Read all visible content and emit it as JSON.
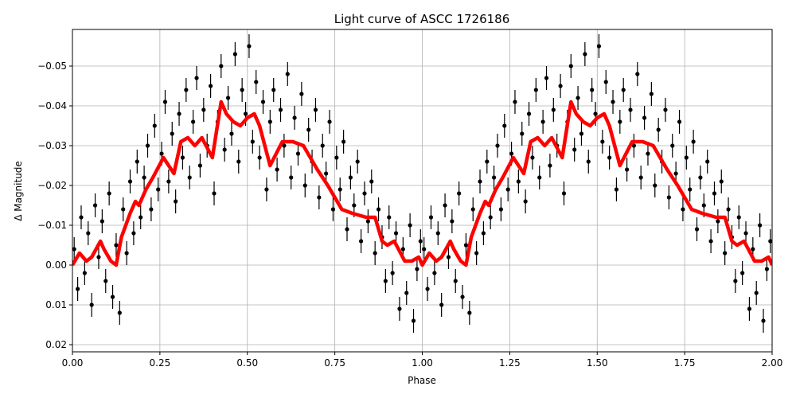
{
  "chart_data": {
    "type": "scatter",
    "title": "Light curve of ASCC 1726186",
    "xlabel": "Phase",
    "ylabel": "Δ Magnitude",
    "xlim": [
      0,
      2
    ],
    "ylim": [
      0.0218,
      -0.0592
    ],
    "y_inverted": true,
    "grid": true,
    "xticks": [
      "0.00",
      "0.25",
      "0.50",
      "0.75",
      "1.00",
      "1.25",
      "1.50",
      "1.75",
      "2.00"
    ],
    "xtick_values": [
      0,
      0.25,
      0.5,
      0.75,
      1,
      1.25,
      1.5,
      1.75,
      2
    ],
    "yticks": [
      "−0.05",
      "−0.04",
      "−0.03",
      "−0.02",
      "−0.01",
      "0.00",
      "0.01",
      "0.02"
    ],
    "ytick_values": [
      -0.05,
      -0.04,
      -0.03,
      -0.02,
      -0.01,
      0,
      0.01,
      0.02
    ],
    "colors": {
      "points": "#000000",
      "model": "#ff0000"
    },
    "period_repeats": 2,
    "points": {
      "phase": [
        0.0,
        0.01,
        0.02,
        0.03,
        0.04,
        0.05,
        0.06,
        0.07,
        0.08,
        0.09,
        0.1,
        0.11,
        0.12,
        0.13,
        0.14,
        0.15,
        0.16,
        0.17,
        0.18,
        0.19,
        0.2,
        0.21,
        0.22,
        0.23,
        0.24,
        0.25,
        0.26,
        0.27,
        0.28,
        0.29,
        0.3,
        0.31,
        0.32,
        0.33,
        0.34,
        0.35,
        0.36,
        0.37,
        0.38,
        0.39,
        0.4,
        0.41,
        0.42,
        0.43,
        0.44,
        0.45,
        0.46,
        0.47,
        0.48,
        0.49,
        0.5,
        0.51,
        0.52,
        0.53,
        0.54,
        0.55,
        0.56,
        0.57,
        0.58,
        0.59,
        0.6,
        0.61,
        0.62,
        0.63,
        0.64,
        0.65,
        0.66,
        0.67,
        0.68,
        0.69,
        0.7,
        0.71,
        0.72,
        0.73,
        0.74,
        0.75,
        0.76,
        0.77,
        0.78,
        0.79,
        0.8,
        0.81,
        0.82,
        0.83,
        0.84,
        0.85,
        0.86,
        0.87,
        0.88,
        0.89,
        0.9,
        0.91,
        0.92,
        0.93,
        0.94,
        0.95,
        0.96,
        0.97,
        0.98,
        0.99
      ],
      "mag": [
        -0.004,
        0.006,
        -0.012,
        0.002,
        -0.008,
        0.01,
        -0.015,
        -0.002,
        -0.011,
        0.004,
        -0.018,
        0.008,
        -0.005,
        0.012,
        -0.014,
        -0.003,
        -0.021,
        -0.008,
        -0.026,
        -0.012,
        -0.022,
        -0.03,
        -0.014,
        -0.035,
        -0.019,
        -0.028,
        -0.041,
        -0.021,
        -0.033,
        -0.016,
        -0.038,
        -0.027,
        -0.044,
        -0.022,
        -0.036,
        -0.047,
        -0.025,
        -0.039,
        -0.03,
        -0.045,
        -0.018,
        -0.036,
        -0.05,
        -0.029,
        -0.042,
        -0.033,
        -0.053,
        -0.026,
        -0.044,
        -0.038,
        -0.055,
        -0.031,
        -0.046,
        -0.027,
        -0.041,
        -0.019,
        -0.036,
        -0.044,
        -0.024,
        -0.039,
        -0.03,
        -0.048,
        -0.022,
        -0.037,
        -0.028,
        -0.043,
        -0.02,
        -0.034,
        -0.026,
        -0.039,
        -0.017,
        -0.03,
        -0.023,
        -0.036,
        -0.014,
        -0.027,
        -0.019,
        -0.031,
        -0.009,
        -0.022,
        -0.015,
        -0.026,
        -0.006,
        -0.018,
        -0.011,
        -0.021,
        -0.003,
        -0.014,
        -0.007,
        0.004,
        -0.012,
        0.002,
        -0.008,
        0.011,
        -0.004,
        0.007,
        -0.01,
        0.014,
        0.001,
        -0.006
      ],
      "yerr": 0.003
    },
    "model": {
      "phase": [
        0.0,
        0.02,
        0.04,
        0.055,
        0.08,
        0.09,
        0.11,
        0.125,
        0.14,
        0.165,
        0.18,
        0.19,
        0.21,
        0.23,
        0.26,
        0.29,
        0.31,
        0.33,
        0.35,
        0.37,
        0.4,
        0.425,
        0.44,
        0.46,
        0.48,
        0.5,
        0.52,
        0.535,
        0.565,
        0.6,
        0.63,
        0.66,
        0.7,
        0.73,
        0.77,
        0.8,
        0.84,
        0.865,
        0.885,
        0.9,
        0.92,
        0.95,
        0.97,
        0.99,
        1.0
      ],
      "mag": [
        0.0,
        -0.003,
        -0.001,
        -0.002,
        -0.006,
        -0.004,
        -0.001,
        0.0,
        -0.007,
        -0.013,
        -0.016,
        -0.015,
        -0.019,
        -0.022,
        -0.027,
        -0.023,
        -0.031,
        -0.032,
        -0.03,
        -0.032,
        -0.027,
        -0.041,
        -0.038,
        -0.036,
        -0.035,
        -0.037,
        -0.038,
        -0.035,
        -0.025,
        -0.031,
        -0.031,
        -0.03,
        -0.024,
        -0.02,
        -0.014,
        -0.013,
        -0.012,
        -0.012,
        -0.006,
        -0.005,
        -0.006,
        -0.001,
        -0.001,
        -0.002,
        0.0
      ]
    }
  }
}
